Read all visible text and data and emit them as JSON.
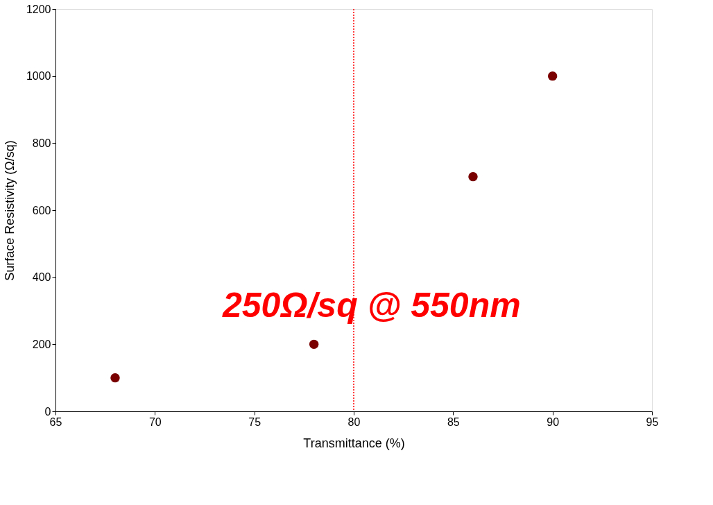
{
  "chart_data": {
    "type": "scatter",
    "xlabel": "Transmittance (%)",
    "ylabel": "Surface Resistivity (Ω/sq)",
    "x": [
      68,
      78,
      86,
      90
    ],
    "series": [
      {
        "color": "#7a0000",
        "values": [
          100,
          200,
          700,
          1000
        ]
      }
    ],
    "xlim": [
      65,
      95
    ],
    "xticks": [
      65,
      70,
      75,
      80,
      85,
      90,
      95
    ],
    "ylim": [
      0,
      1200
    ],
    "yticks": [
      0,
      200,
      400,
      600,
      800,
      1000,
      1200
    ],
    "ref_lines": [
      {
        "axis": "x",
        "value": 80,
        "color": "#ff0000",
        "line_style": "dotted"
      }
    ],
    "annotations": [
      "250Ω/sq @ 550nm"
    ],
    "marker": "circle",
    "grid": false
  }
}
